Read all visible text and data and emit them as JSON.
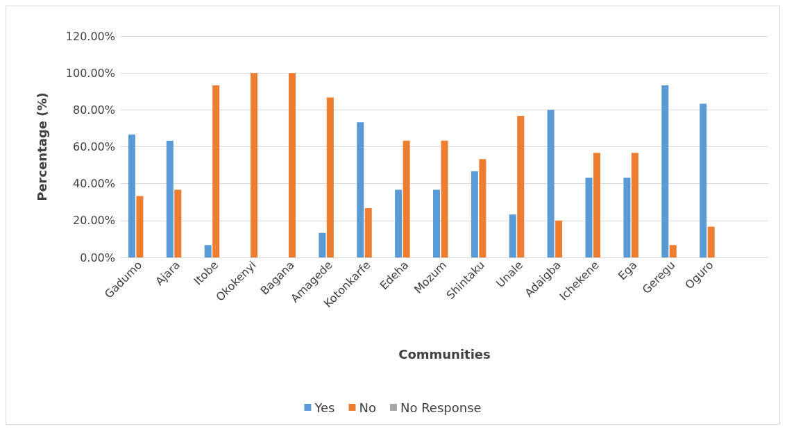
{
  "chart_data": {
    "type": "bar",
    "xlabel": "Communities",
    "ylabel": "Percentage (%)",
    "categories": [
      "Gadumo",
      "Ajara",
      "Itobe",
      "Okokenyi",
      "Bagana",
      "Amagede",
      "Kotonkarfe",
      "Edeha",
      "Mozum",
      "Shintaku",
      "Unale",
      "Adaigba",
      "Ichekene",
      "Ega",
      "Geregu",
      "Oguro",
      null
    ],
    "series": [
      {
        "name": "Yes",
        "color": "#5b9bd5",
        "values": [
          66.7,
          63.3,
          6.7,
          0,
          0,
          13.3,
          73.3,
          36.7,
          36.7,
          46.7,
          23.3,
          80,
          43.3,
          43.3,
          93.3,
          83.3,
          null
        ]
      },
      {
        "name": "No",
        "color": "#ed7d31",
        "values": [
          33.3,
          36.7,
          93.3,
          100,
          100,
          86.7,
          26.7,
          63.3,
          63.3,
          53.3,
          76.7,
          20,
          56.7,
          56.7,
          6.7,
          16.7,
          null
        ]
      },
      {
        "name": "No Response",
        "color": "#a5a5a5",
        "values": [
          0,
          0,
          0,
          0,
          0,
          0,
          0,
          0,
          0,
          0,
          0,
          0,
          0,
          0,
          0,
          0,
          null
        ]
      }
    ],
    "ylim": [
      0,
      120
    ],
    "yticks": [
      {
        "value": 0,
        "label": "0.00%"
      },
      {
        "value": 20,
        "label": "20.00%"
      },
      {
        "value": 40,
        "label": "40.00%"
      },
      {
        "value": 60,
        "label": "60.00%"
      },
      {
        "value": 80,
        "label": "80.00%"
      },
      {
        "value": 100,
        "label": "100.00%"
      },
      {
        "value": 120,
        "label": "120.00%"
      }
    ],
    "grid": "y",
    "legend": "bottom"
  }
}
